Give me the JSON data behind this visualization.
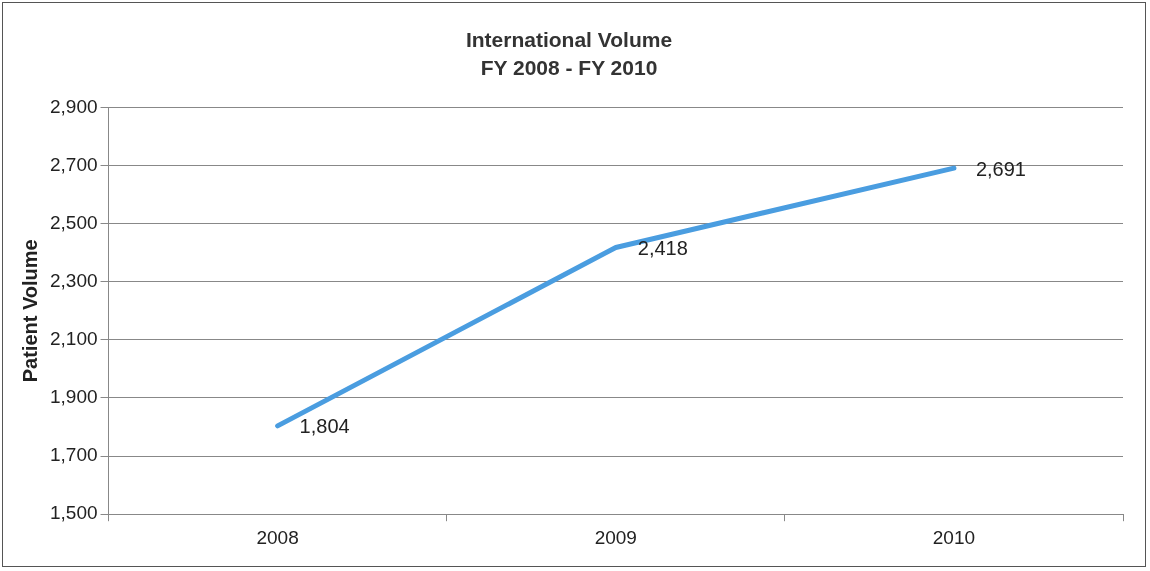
{
  "chart_data": {
    "type": "line",
    "title": "International Volume",
    "subtitle": "FY 2008 - FY 2010",
    "ylabel": "Patient Volume",
    "categories": [
      "2008",
      "2009",
      "2010"
    ],
    "series": [
      {
        "color": "#4a9de0",
        "values": [
          1804,
          2418,
          2691
        ],
        "value_labels": [
          "1,804",
          "2,418",
          "2,691"
        ]
      }
    ],
    "ylim": [
      1500,
      2900
    ],
    "yticks": [
      {
        "value": 1500,
        "label": "1,500"
      },
      {
        "value": 1700,
        "label": "1,700"
      },
      {
        "value": 1900,
        "label": "1,900"
      },
      {
        "value": 2100,
        "label": "2,100"
      },
      {
        "value": 2300,
        "label": "2,300"
      },
      {
        "value": 2500,
        "label": "2,500"
      },
      {
        "value": 2700,
        "label": "2,700"
      },
      {
        "value": 2900,
        "label": "2,900"
      }
    ],
    "grid": "y",
    "legend": false,
    "marker": "none",
    "line_style": "solid"
  }
}
